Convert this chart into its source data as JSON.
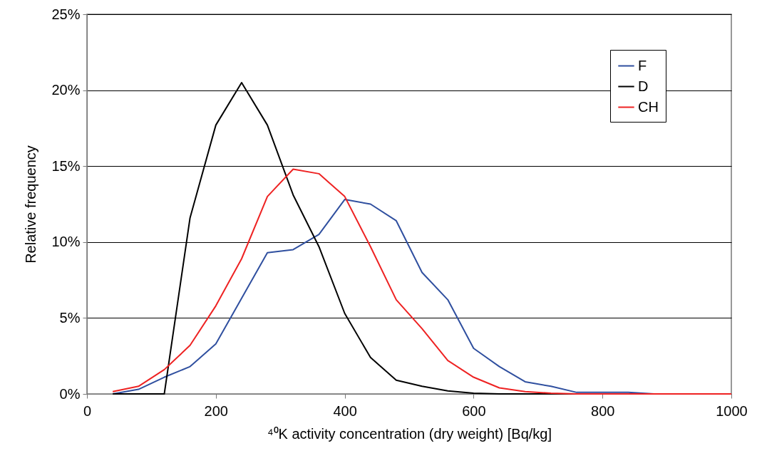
{
  "chart_data": {
    "type": "line",
    "xlabel": "⁴⁰K activity concentration (dry weight) [Bq/kg]",
    "ylabel": "Relative frequency",
    "x": [
      40,
      80,
      120,
      160,
      200,
      240,
      280,
      320,
      360,
      400,
      440,
      480,
      520,
      560,
      600,
      640,
      680,
      720,
      760,
      800,
      840,
      880,
      920,
      960,
      1000
    ],
    "series": [
      {
        "name": "F",
        "color": "#2f4f9f",
        "values": [
          0,
          0.3,
          1.1,
          1.8,
          3.3,
          6.3,
          9.3,
          9.5,
          10.5,
          12.8,
          12.5,
          11.4,
          8.0,
          6.2,
          3.0,
          1.8,
          0.8,
          0.5,
          0.1,
          0.1,
          0.1,
          0,
          0,
          null,
          null
        ]
      },
      {
        "name": "D",
        "color": "#000000",
        "values": [
          0,
          0,
          0,
          11.6,
          17.7,
          20.5,
          17.7,
          13.1,
          9.7,
          5.3,
          2.4,
          0.9,
          0.5,
          0.2,
          0.05,
          0,
          0,
          0,
          0,
          0,
          0,
          0,
          0,
          0,
          0
        ]
      },
      {
        "name": "CH",
        "color": "#ee2222",
        "values": [
          0.15,
          0.5,
          1.6,
          3.2,
          5.8,
          8.9,
          13.0,
          14.8,
          14.5,
          13.0,
          9.7,
          6.2,
          4.3,
          2.2,
          1.1,
          0.4,
          0.15,
          0.05,
          0,
          0,
          0,
          0,
          0,
          0,
          0
        ]
      }
    ],
    "xlim": [
      0,
      1000
    ],
    "xticks": [
      0,
      200,
      400,
      600,
      800,
      1000
    ],
    "ylim": [
      0,
      25
    ],
    "yticks": [
      {
        "value": 0,
        "label": "0%"
      },
      {
        "value": 5,
        "label": "5%"
      },
      {
        "value": 10,
        "label": "10%"
      },
      {
        "value": 15,
        "label": "15%"
      },
      {
        "value": 20,
        "label": "20%"
      },
      {
        "value": 25,
        "label": "25%"
      }
    ],
    "grid": "y",
    "legend": "top right",
    "marker": "none",
    "line_style": "solid"
  }
}
